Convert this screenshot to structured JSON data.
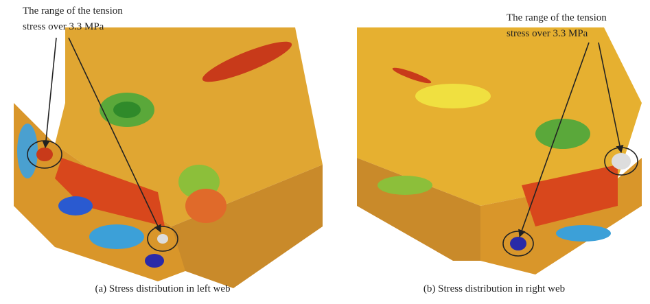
{
  "panels": [
    {
      "annotation": [
        "The range of the tension",
        "stress over 3.3 MPa"
      ],
      "caption": "(a)  Stress distribution in left web"
    },
    {
      "annotation": [
        "The range of the tension",
        "stress over 3.3 MPa"
      ],
      "caption": "(b)  Stress distribution in right web"
    }
  ]
}
